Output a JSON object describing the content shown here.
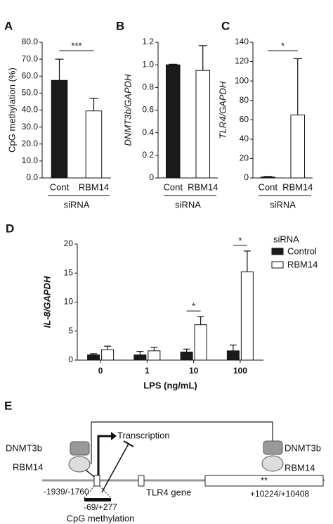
{
  "chart_data": [
    {
      "type": "bar",
      "panel": "A",
      "ylabel": "CpG methylation (%)",
      "categories": [
        "Cont",
        "RBM14"
      ],
      "values": [
        57.5,
        39.5
      ],
      "errors": [
        12.5,
        7.5
      ],
      "colors": [
        "#1a1a1a",
        "#ffffff"
      ],
      "ylim": [
        0,
        80
      ],
      "yticks": [
        {
          "value": 0,
          "label": "0.0"
        },
        {
          "value": 10,
          "label": "10.0"
        },
        {
          "value": 20,
          "label": "20.0"
        },
        {
          "value": 30,
          "label": "30.0"
        },
        {
          "value": 40,
          "label": "40.0"
        },
        {
          "value": 50,
          "label": "50.0"
        },
        {
          "value": 60,
          "label": "60.0"
        },
        {
          "value": 70,
          "label": "70.0"
        },
        {
          "value": 80,
          "label": "80.0"
        }
      ],
      "significance": "***",
      "group_label": "siRNA"
    },
    {
      "type": "bar",
      "panel": "B",
      "ylabel": "DNMT3b/GAPDH",
      "categories": [
        "Cont",
        "RBM14"
      ],
      "values": [
        1.0,
        0.95
      ],
      "errors": [
        0.005,
        0.22
      ],
      "colors": [
        "#1a1a1a",
        "#ffffff"
      ],
      "ylim": [
        0,
        1.2
      ],
      "yticks": [
        0,
        0.2,
        0.4,
        0.6,
        0.8,
        {
          "value": 1,
          "label": "1.0"
        },
        1.2
      ],
      "group_label": "siRNA"
    },
    {
      "type": "bar",
      "panel": "C",
      "ylabel": "TLR4/GAPDH",
      "categories": [
        "Cont",
        "RBM14"
      ],
      "values": [
        1,
        65
      ],
      "errors": [
        0.5,
        58
      ],
      "colors": [
        "#1a1a1a",
        "#ffffff"
      ],
      "ylim": [
        0,
        140
      ],
      "yticks": [
        0,
        20,
        40,
        60,
        80,
        100,
        120,
        140
      ],
      "significance": "*",
      "group_label": "siRNA"
    },
    {
      "type": "grouped_bar",
      "panel": "D",
      "ylabel": "IL-8/GAPDH",
      "xlabel": "LPS (ng/mL)",
      "categories": [
        "0",
        "1",
        "10",
        "100"
      ],
      "series": [
        {
          "name": "Control",
          "color": "#1a1a1a",
          "values": [
            0.9,
            0.9,
            1.4,
            1.6
          ],
          "errors": [
            0.2,
            0.6,
            0.5,
            1.0
          ]
        },
        {
          "name": "RBM14",
          "color": "#ffffff",
          "values": [
            1.8,
            1.6,
            6.1,
            15.2
          ],
          "errors": [
            0.6,
            0.6,
            1.4,
            3.6
          ]
        }
      ],
      "legend_title": "siRNA",
      "ylim": [
        0,
        20
      ],
      "yticks": [
        0,
        5,
        10,
        15,
        20
      ],
      "annotations": [
        {
          "category": "10",
          "text": "*"
        },
        {
          "category": "100",
          "text": "*"
        }
      ]
    }
  ],
  "panel_e": {
    "panel": "E",
    "left_protein_top": "DNMT3b",
    "left_protein_bottom": "RBM14",
    "left_region": "-1939/-1760",
    "transcription": "Transcription",
    "gene": "TLR4 gene",
    "gene_mark": "**",
    "right_protein_top": "DNMT3b",
    "right_protein_bottom": "RBM14",
    "right_region": "+10224/+10408",
    "cpg_region": "-69/+277",
    "cpg_label": "CpG methylation"
  }
}
